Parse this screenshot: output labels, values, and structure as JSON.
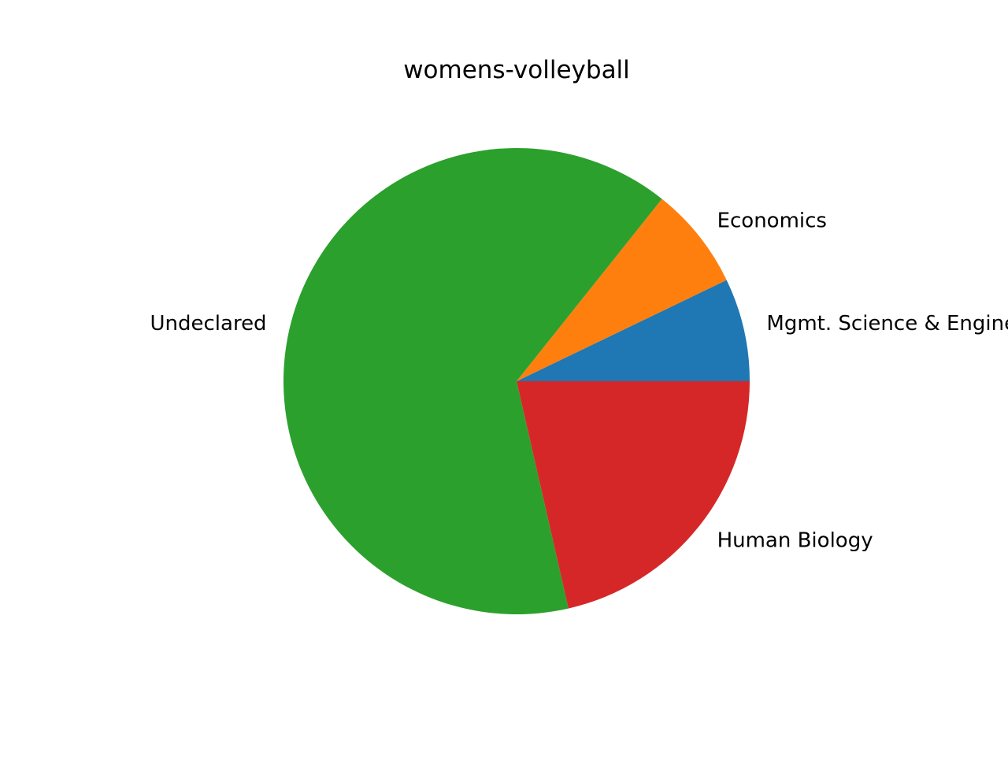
{
  "chart_data": {
    "type": "pie",
    "title": "womens-volleyball",
    "categories": [
      "Mgmt. Science & Engineering",
      "Economics",
      "Undeclared",
      "Human Biology"
    ],
    "values": [
      1,
      1,
      9,
      3
    ],
    "colors": [
      "#1f77b4",
      "#ff7f0e",
      "#2ca02c",
      "#d62728"
    ],
    "start_angle_deg": 0,
    "direction": "counterclockwise"
  }
}
